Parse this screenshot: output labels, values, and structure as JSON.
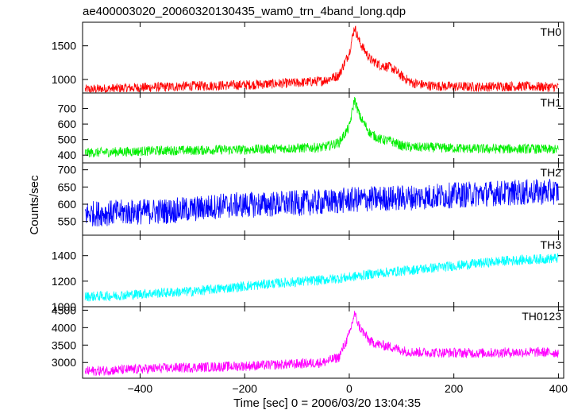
{
  "chart_data": {
    "type": "line",
    "title": "ae400003020_20060320130435_wam0_trn_4band_long.qdp",
    "xlabel": "Time [sec] 0 = 2006/03/20 13:04:35",
    "ylabel": "Counts/sec",
    "xlim": [
      -510,
      410
    ],
    "xticks": [
      -400,
      -200,
      0,
      200,
      400
    ],
    "grid": false,
    "panels": [
      {
        "name": "TH0",
        "color": "#ff0000",
        "ylim": [
          800,
          1850
        ],
        "yticks": [
          1000,
          1500
        ],
        "x": [
          -500,
          -450,
          -400,
          -350,
          -300,
          -250,
          -200,
          -150,
          -100,
          -50,
          -20,
          0,
          10,
          20,
          40,
          60,
          80,
          100,
          120,
          150,
          200,
          250,
          300,
          350,
          400
        ],
        "y": [
          850,
          865,
          880,
          890,
          905,
          910,
          920,
          935,
          950,
          980,
          1060,
          1400,
          1780,
          1550,
          1300,
          1210,
          1180,
          1050,
          950,
          910,
          895,
          890,
          900,
          895,
          885
        ]
      },
      {
        "name": "TH1",
        "color": "#00ee00",
        "ylim": [
          350,
          800
        ],
        "yticks": [
          400,
          500,
          600,
          700
        ],
        "x": [
          -500,
          -450,
          -400,
          -350,
          -300,
          -250,
          -200,
          -150,
          -100,
          -50,
          -20,
          0,
          10,
          20,
          40,
          60,
          80,
          100,
          120,
          150,
          200,
          250,
          300,
          350,
          400
        ],
        "y": [
          415,
          420,
          425,
          430,
          430,
          435,
          435,
          440,
          445,
          450,
          480,
          580,
          760,
          650,
          540,
          500,
          490,
          460,
          450,
          450,
          445,
          440,
          440,
          440,
          435
        ]
      },
      {
        "name": "TH2",
        "color": "#0000ff",
        "ylim": [
          510,
          720
        ],
        "yticks": [
          550,
          600,
          650,
          700
        ],
        "x": [
          -500,
          -450,
          -400,
          -350,
          -300,
          -250,
          -200,
          -150,
          -100,
          -50,
          0,
          50,
          100,
          150,
          200,
          250,
          300,
          350,
          400
        ],
        "y": [
          572,
          575,
          578,
          580,
          585,
          595,
          598,
          600,
          603,
          606,
          612,
          616,
          618,
          622,
          626,
          630,
          633,
          635,
          636
        ]
      },
      {
        "name": "TH3",
        "color": "#00ffff",
        "ylim": [
          1000,
          1560
        ],
        "yticks": [
          1000,
          1200,
          1400
        ],
        "x": [
          -500,
          -450,
          -400,
          -350,
          -300,
          -250,
          -200,
          -150,
          -100,
          -50,
          0,
          50,
          100,
          150,
          200,
          250,
          300,
          350,
          400
        ],
        "y": [
          1080,
          1085,
          1100,
          1110,
          1120,
          1140,
          1160,
          1180,
          1195,
          1210,
          1230,
          1260,
          1280,
          1300,
          1320,
          1340,
          1360,
          1370,
          1380
        ]
      },
      {
        "name": "TH0123",
        "color": "#ff00ff",
        "ylim": [
          2550,
          4600
        ],
        "yticks": [
          3000,
          3500,
          4000,
          4500
        ],
        "x": [
          -500,
          -450,
          -400,
          -350,
          -300,
          -250,
          -200,
          -150,
          -100,
          -50,
          -20,
          0,
          10,
          20,
          40,
          60,
          80,
          100,
          120,
          150,
          200,
          250,
          300,
          350,
          400
        ],
        "y": [
          2750,
          2780,
          2810,
          2840,
          2860,
          2880,
          2900,
          2930,
          2960,
          3000,
          3150,
          3800,
          4400,
          4000,
          3600,
          3500,
          3450,
          3350,
          3300,
          3290,
          3280,
          3270,
          3290,
          3300,
          3280
        ]
      }
    ]
  }
}
